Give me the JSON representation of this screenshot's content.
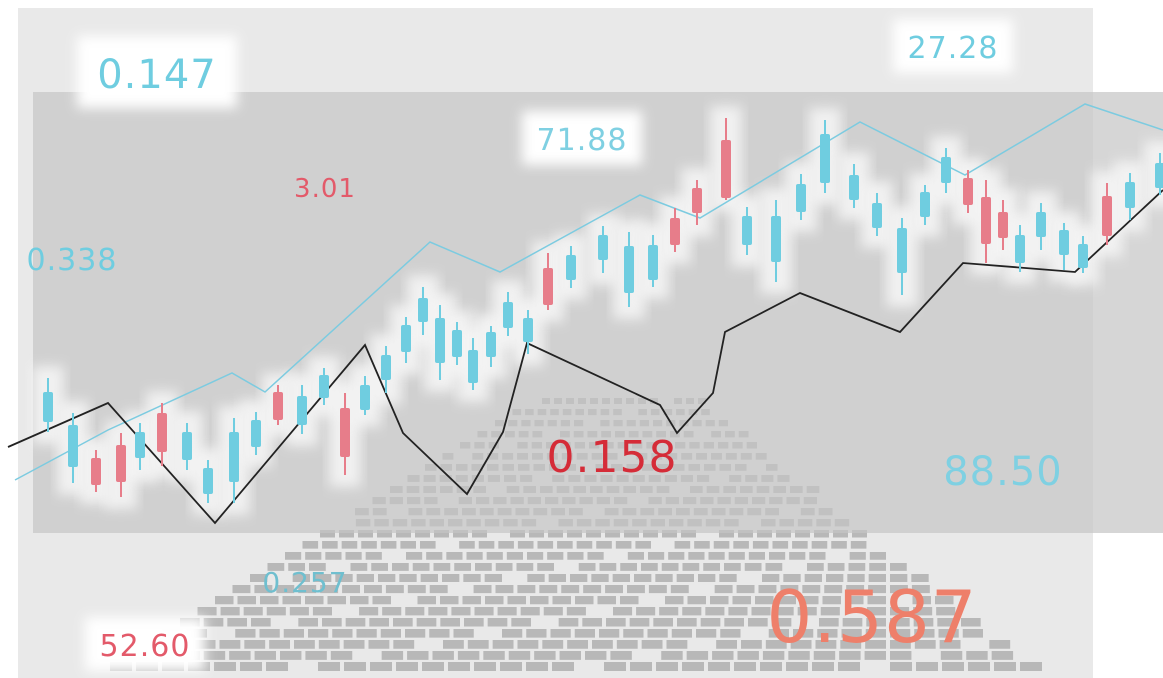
{
  "labels": [
    "0.147",
    "27.28",
    "71.88",
    "3.01",
    "0.338",
    "0.158",
    "88.50",
    "0.257",
    "52.60",
    "0.587"
  ]
}
